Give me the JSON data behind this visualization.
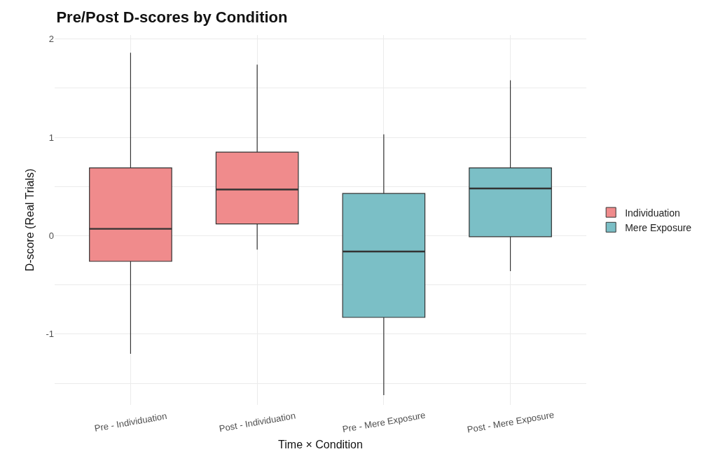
{
  "chart_data": {
    "type": "box",
    "title": "Pre/Post D-scores by Condition",
    "xlabel": "Time × Condition",
    "ylabel": "D-score (Real Trials)",
    "categories": [
      "Pre - Individuation",
      "Post - Individuation",
      "Pre - Mere Exposure",
      "Post - Mere Exposure"
    ],
    "series": [
      {
        "name": "Individuation",
        "color": "#f08b8c",
        "boxes": [
          {
            "low": -1.2,
            "q1": -0.26,
            "median": 0.07,
            "q3": 0.69,
            "high": 1.86
          },
          {
            "low": -0.14,
            "q1": 0.12,
            "median": 0.47,
            "q3": 0.85,
            "high": 1.74
          },
          null,
          null
        ]
      },
      {
        "name": "Mere Exposure",
        "color": "#7bbfc6",
        "boxes": [
          null,
          null,
          {
            "low": -1.62,
            "q1": -0.83,
            "median": -0.16,
            "q3": 0.43,
            "high": 1.03
          },
          {
            "low": -0.36,
            "q1": -0.01,
            "median": 0.48,
            "q3": 0.69,
            "high": 1.58
          }
        ]
      }
    ],
    "ylim": [
      -1.72,
      2.04
    ],
    "yticks": [
      {
        "value": -1.5,
        "label": null
      },
      -1,
      {
        "value": -0.5,
        "label": null
      },
      0,
      {
        "value": 0.5,
        "label": null
      },
      1,
      {
        "value": 1.5,
        "label": null
      },
      2
    ],
    "grid": true,
    "legend": "right"
  }
}
